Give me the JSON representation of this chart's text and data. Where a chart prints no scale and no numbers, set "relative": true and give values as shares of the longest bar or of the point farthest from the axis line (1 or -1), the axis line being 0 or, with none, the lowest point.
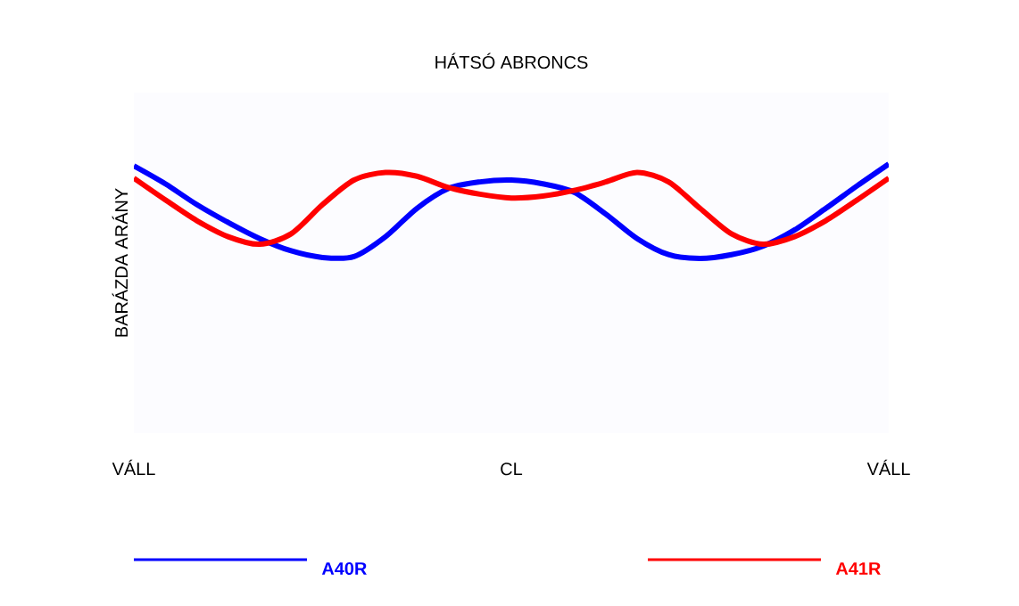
{
  "chart_data": {
    "type": "line",
    "title": "HÁTSÓ ABRONCS",
    "ylabel": "BARÁZDA ARÁNY",
    "relative": true,
    "legend": "bottom",
    "grid": false,
    "marker": "none",
    "line_style": "solid",
    "categories": [
      "VÁLL",
      null,
      null,
      null,
      null,
      null,
      null,
      null,
      null,
      null,
      null,
      null,
      "CL",
      null,
      null,
      null,
      null,
      null,
      null,
      null,
      null,
      null,
      null,
      null,
      "VÁLL"
    ],
    "series": [
      {
        "name": "A40R",
        "color": "#0000ff",
        "values": [
          0.98,
          0.79,
          0.57,
          0.38,
          0.21,
          0.08,
          0.01,
          0.02,
          0.23,
          0.53,
          0.74,
          0.81,
          0.83,
          0.79,
          0.7,
          0.47,
          0.21,
          0.04,
          0,
          0.04,
          0.13,
          0.3,
          0.53,
          0.77,
          1
        ]
      },
      {
        "name": "A41R",
        "color": "#ff0000",
        "values": [
          0.85,
          0.62,
          0.4,
          0.23,
          0.15,
          0.26,
          0.57,
          0.83,
          0.91,
          0.87,
          0.75,
          0.68,
          0.64,
          0.66,
          0.72,
          0.81,
          0.91,
          0.81,
          0.53,
          0.26,
          0.15,
          0.23,
          0.4,
          0.62,
          0.85
        ]
      }
    ]
  }
}
